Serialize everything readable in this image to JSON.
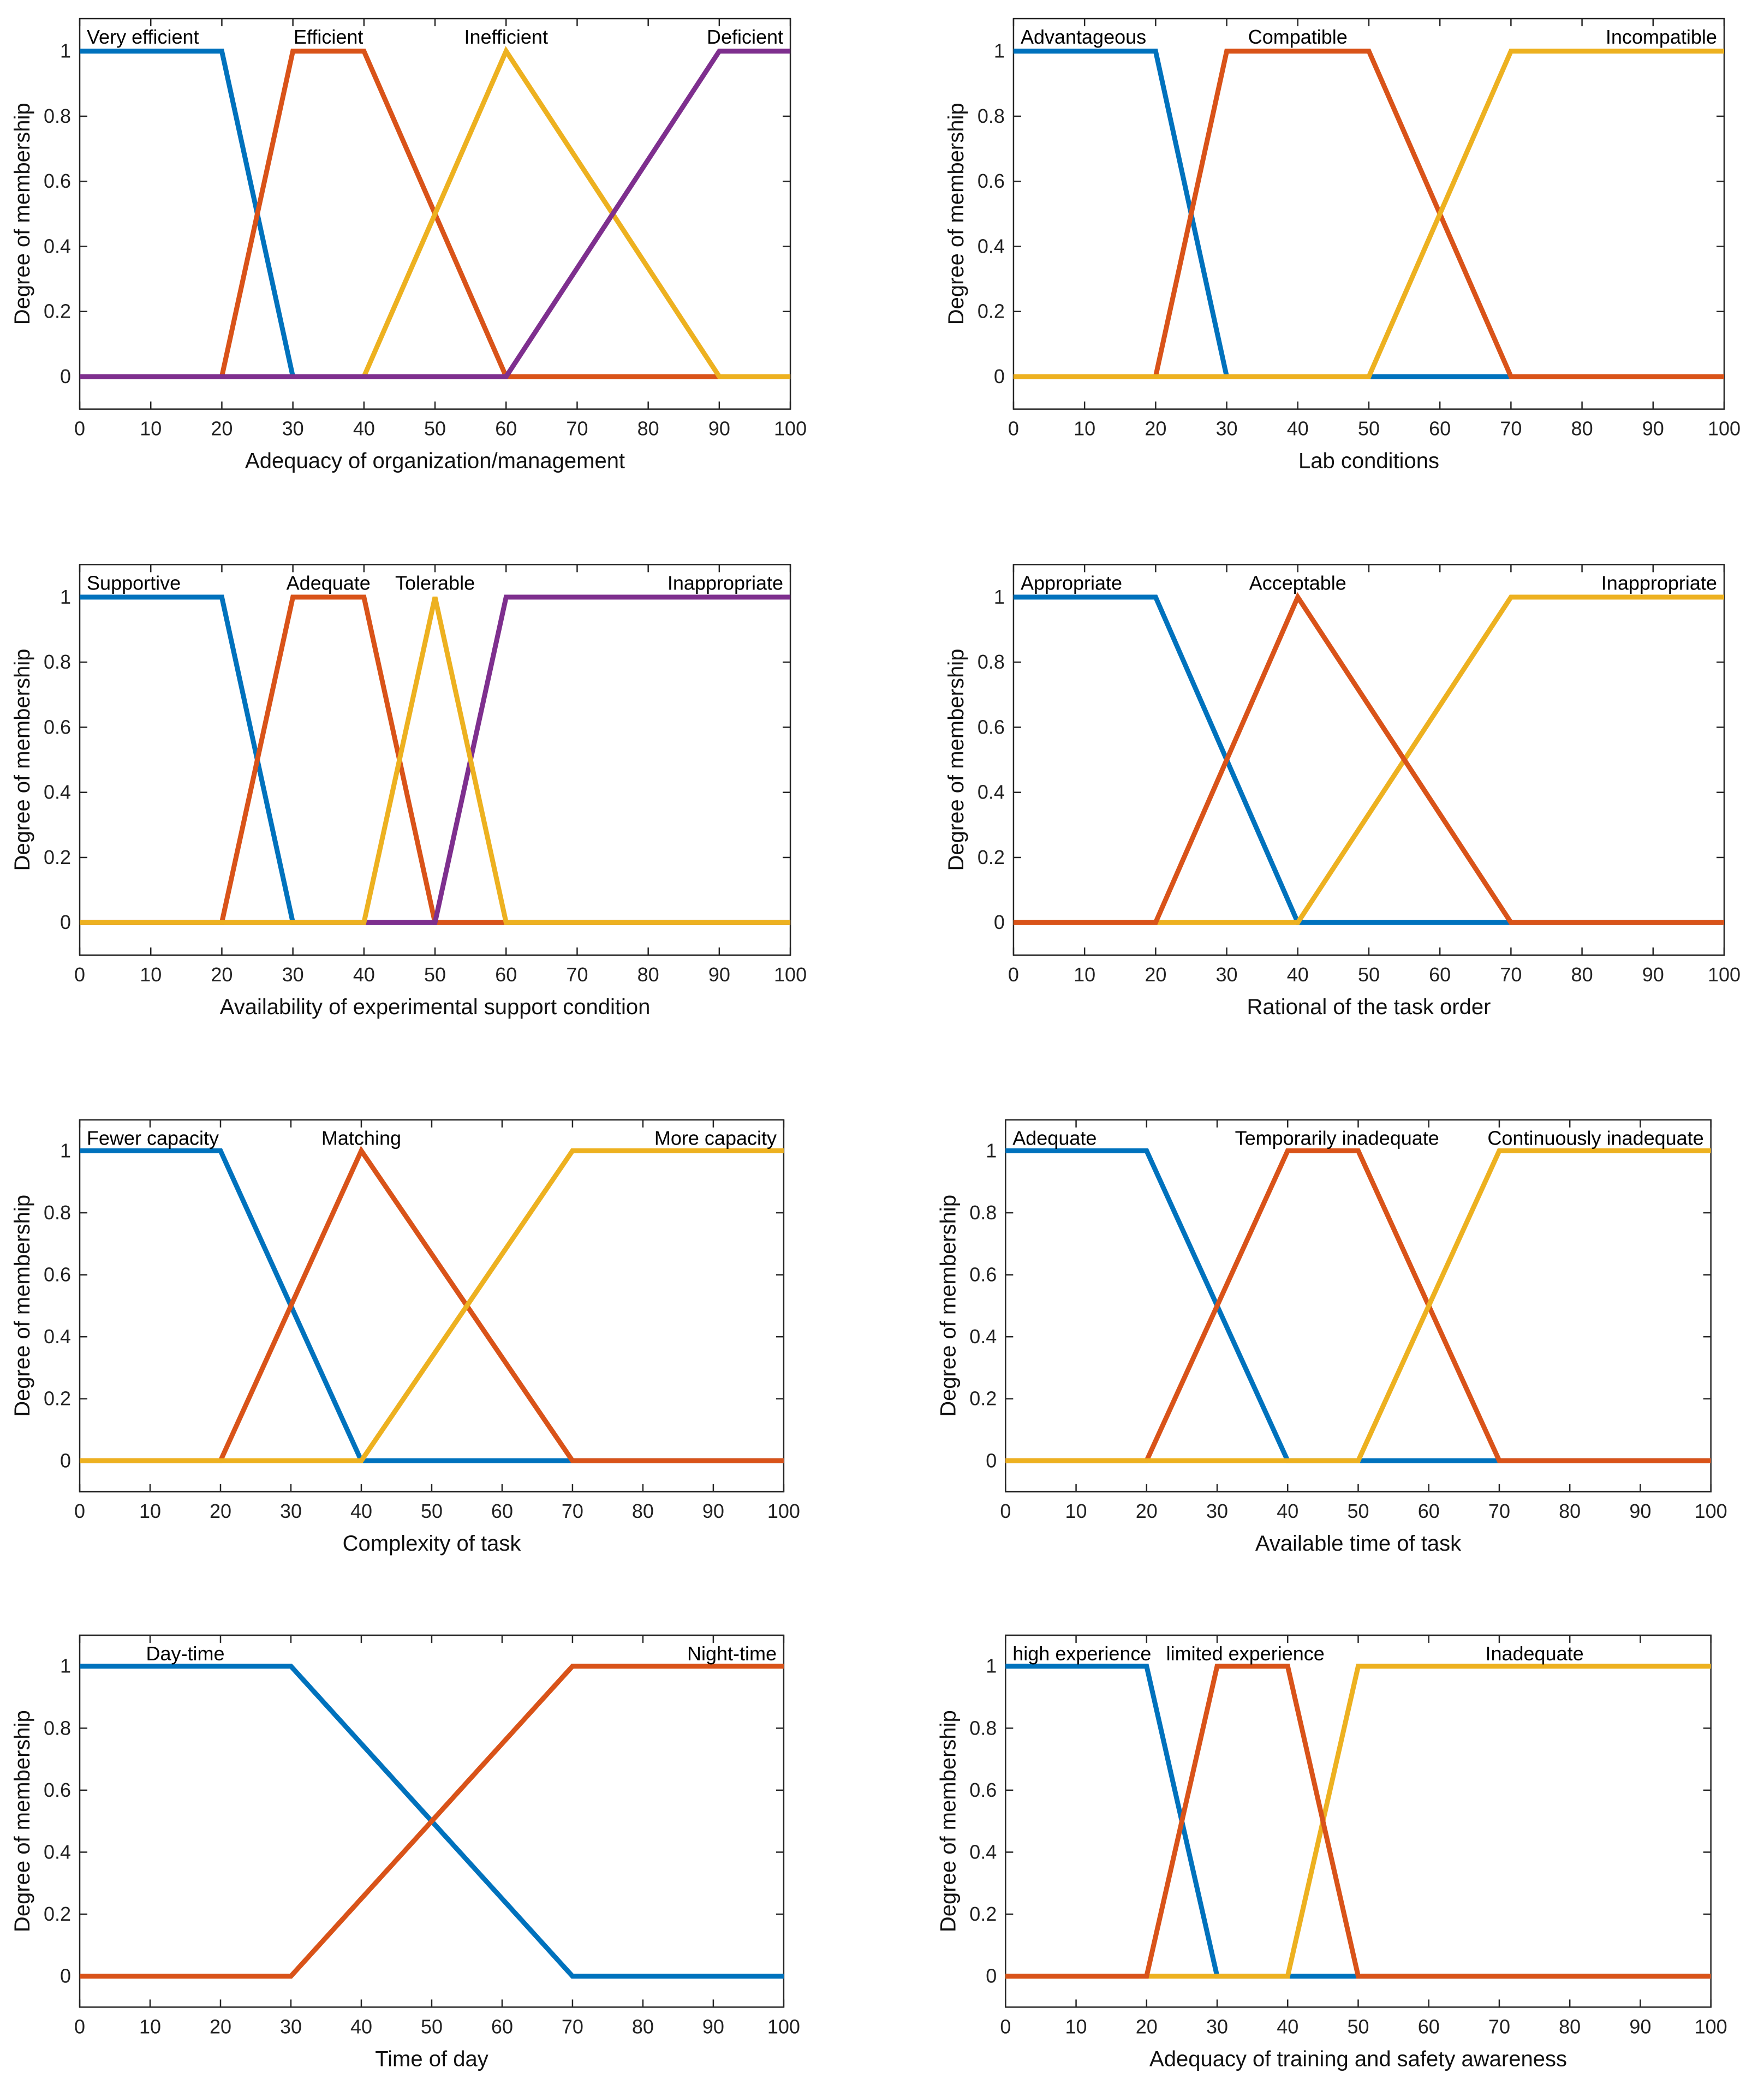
{
  "colors": {
    "blue": "#0072BD",
    "orange": "#D95319",
    "yellow": "#EDB120",
    "purple": "#7E2F8E"
  },
  "chart_data": [
    {
      "type": "line",
      "xlabel": "Adequacy of organization/management",
      "ylabel": "Degree of membership",
      "xlim": [
        0,
        100
      ],
      "ylim": [
        -0.1,
        1.1
      ],
      "xticks": [
        "0",
        "10",
        "20",
        "30",
        "40",
        "50",
        "60",
        "70",
        "80",
        "90",
        "100"
      ],
      "yticks": [
        "0",
        "0.2",
        "0.4",
        "0.6",
        "0.8",
        "1"
      ],
      "series": [
        {
          "name": "Very efficient",
          "color": "blue",
          "x": [
            0,
            20,
            30,
            100
          ],
          "y": [
            1,
            1,
            0,
            0
          ]
        },
        {
          "name": "Efficient",
          "color": "orange",
          "x": [
            0,
            20,
            30,
            40,
            60,
            100
          ],
          "y": [
            0,
            0,
            1,
            1,
            0,
            0
          ]
        },
        {
          "name": "Inefficient",
          "color": "yellow",
          "x": [
            0,
            40,
            60,
            90,
            100
          ],
          "y": [
            0,
            0,
            1,
            0,
            0
          ]
        },
        {
          "name": "Deficient",
          "color": "purple",
          "x": [
            0,
            60,
            90,
            100
          ],
          "y": [
            0,
            0,
            1,
            1
          ]
        }
      ],
      "term_labels": [
        {
          "text": "Very efficient",
          "x": 1,
          "anchor": "start"
        },
        {
          "text": "Efficient",
          "x": 35,
          "anchor": "middle"
        },
        {
          "text": "Inefficient",
          "x": 60,
          "anchor": "middle"
        },
        {
          "text": "Deficient",
          "x": 99,
          "anchor": "end"
        }
      ]
    },
    {
      "type": "line",
      "xlabel": "Lab conditions",
      "ylabel": "Degree of membership",
      "xlim": [
        0,
        100
      ],
      "ylim": [
        -0.1,
        1.1
      ],
      "xticks": [
        "0",
        "10",
        "20",
        "30",
        "40",
        "50",
        "60",
        "70",
        "80",
        "90",
        "100"
      ],
      "yticks": [
        "0",
        "0.2",
        "0.4",
        "0.6",
        "0.8",
        "1"
      ],
      "series": [
        {
          "name": "Advantageous",
          "color": "blue",
          "x": [
            0,
            20,
            30,
            100
          ],
          "y": [
            1,
            1,
            0,
            0
          ]
        },
        {
          "name": "Compatible",
          "color": "orange",
          "x": [
            0,
            20,
            30,
            50,
            70,
            100
          ],
          "y": [
            0,
            0,
            1,
            1,
            0,
            0
          ]
        },
        {
          "name": "Incompatible",
          "color": "yellow",
          "x": [
            0,
            50,
            70,
            100
          ],
          "y": [
            0,
            0,
            1,
            1
          ]
        }
      ],
      "term_labels": [
        {
          "text": "Advantageous",
          "x": 1,
          "anchor": "start"
        },
        {
          "text": "Compatible",
          "x": 40,
          "anchor": "middle"
        },
        {
          "text": "Incompatible",
          "x": 99,
          "anchor": "end"
        }
      ]
    },
    {
      "type": "line",
      "xlabel": "Availability of experimental support condition",
      "ylabel": "Degree of membership",
      "xlim": [
        0,
        100
      ],
      "ylim": [
        -0.1,
        1.1
      ],
      "xticks": [
        "0",
        "10",
        "20",
        "30",
        "40",
        "50",
        "60",
        "70",
        "80",
        "90",
        "100"
      ],
      "yticks": [
        "0",
        "0.2",
        "0.4",
        "0.6",
        "0.8",
        "1"
      ],
      "series": [
        {
          "name": "Supportive",
          "color": "blue",
          "x": [
            0,
            20,
            30,
            100
          ],
          "y": [
            1,
            1,
            0,
            0
          ]
        },
        {
          "name": "Adequate",
          "color": "orange",
          "x": [
            0,
            20,
            30,
            40,
            50,
            100
          ],
          "y": [
            0,
            0,
            1,
            1,
            0,
            0
          ]
        },
        {
          "name": "Inappropriate",
          "color": "purple",
          "x": [
            0,
            50,
            60,
            100
          ],
          "y": [
            0,
            0,
            1,
            1
          ]
        },
        {
          "name": "Tolerable",
          "color": "yellow",
          "x": [
            0,
            40,
            50,
            60,
            100
          ],
          "y": [
            0,
            0,
            1,
            0,
            0
          ]
        }
      ],
      "term_labels": [
        {
          "text": "Supportive",
          "x": 1,
          "anchor": "start"
        },
        {
          "text": "Adequate",
          "x": 35,
          "anchor": "middle"
        },
        {
          "text": "Tolerable",
          "x": 50,
          "anchor": "middle"
        },
        {
          "text": "Inappropriate",
          "x": 99,
          "anchor": "end"
        }
      ]
    },
    {
      "type": "line",
      "xlabel": "Rational of the task order",
      "ylabel": "Degree of membership",
      "xlim": [
        0,
        100
      ],
      "ylim": [
        -0.1,
        1.1
      ],
      "xticks": [
        "0",
        "10",
        "20",
        "30",
        "40",
        "50",
        "60",
        "70",
        "80",
        "90",
        "100"
      ],
      "yticks": [
        "0",
        "0.2",
        "0.4",
        "0.6",
        "0.8",
        "1"
      ],
      "series": [
        {
          "name": "Appropriate",
          "color": "blue",
          "x": [
            0,
            20,
            40,
            100
          ],
          "y": [
            1,
            1,
            0,
            0
          ]
        },
        {
          "name": "Inappropriate",
          "color": "yellow",
          "x": [
            0,
            40,
            70,
            100
          ],
          "y": [
            0,
            0,
            1,
            1
          ]
        },
        {
          "name": "Acceptable",
          "color": "orange",
          "x": [
            0,
            20,
            40,
            70,
            100
          ],
          "y": [
            0,
            0,
            1,
            0,
            0
          ]
        }
      ],
      "term_labels": [
        {
          "text": "Appropriate",
          "x": 1,
          "anchor": "start"
        },
        {
          "text": "Acceptable",
          "x": 40,
          "anchor": "middle"
        },
        {
          "text": "Inappropriate",
          "x": 99,
          "anchor": "end"
        }
      ]
    },
    {
      "type": "line",
      "xlabel": "Complexity of task",
      "ylabel": "Degree of membership",
      "xlim": [
        0,
        100
      ],
      "ylim": [
        -0.1,
        1.1
      ],
      "xticks": [
        "0",
        "10",
        "20",
        "30",
        "40",
        "50",
        "60",
        "70",
        "80",
        "90",
        "100"
      ],
      "yticks": [
        "0",
        "0.2",
        "0.4",
        "0.6",
        "0.8",
        "1"
      ],
      "series": [
        {
          "name": "Fewer capacity",
          "color": "blue",
          "x": [
            0,
            20,
            40,
            100
          ],
          "y": [
            1,
            1,
            0,
            0
          ]
        },
        {
          "name": "Matching",
          "color": "orange",
          "x": [
            0,
            20,
            40,
            70,
            100
          ],
          "y": [
            0,
            0,
            1,
            0,
            0
          ]
        },
        {
          "name": "More capacity",
          "color": "yellow",
          "x": [
            0,
            40,
            70,
            100
          ],
          "y": [
            0,
            0,
            1,
            1
          ]
        }
      ],
      "term_labels": [
        {
          "text": "Fewer capacity",
          "x": 1,
          "anchor": "start"
        },
        {
          "text": "Matching",
          "x": 40,
          "anchor": "middle"
        },
        {
          "text": "More capacity",
          "x": 99,
          "anchor": "end"
        }
      ]
    },
    {
      "type": "line",
      "xlabel": "Available time of task",
      "ylabel": "Degree of membership",
      "xlim": [
        0,
        100
      ],
      "ylim": [
        -0.1,
        1.1
      ],
      "xticks": [
        "0",
        "10",
        "20",
        "30",
        "40",
        "50",
        "60",
        "70",
        "80",
        "90",
        "100"
      ],
      "yticks": [
        "0",
        "0.2",
        "0.4",
        "0.6",
        "0.8",
        "1"
      ],
      "series": [
        {
          "name": "Adequate",
          "color": "blue",
          "x": [
            0,
            20,
            40,
            100
          ],
          "y": [
            1,
            1,
            0,
            0
          ]
        },
        {
          "name": "Temporarily inadequate",
          "color": "orange",
          "x": [
            0,
            20,
            40,
            50,
            70,
            100
          ],
          "y": [
            0,
            0,
            1,
            1,
            0,
            0
          ]
        },
        {
          "name": "Continuously inadequate",
          "color": "yellow",
          "x": [
            0,
            50,
            70,
            100
          ],
          "y": [
            0,
            0,
            1,
            1
          ]
        }
      ],
      "term_labels": [
        {
          "text": "Adequate",
          "x": 1,
          "anchor": "start"
        },
        {
          "text": "Temporarily inadequate",
          "x": 47,
          "anchor": "middle"
        },
        {
          "text": "Continuously inadequate",
          "x": 99,
          "anchor": "end"
        }
      ]
    },
    {
      "type": "line",
      "xlabel": "Time of day",
      "ylabel": "Degree of membership",
      "xlim": [
        0,
        100
      ],
      "ylim": [
        -0.1,
        1.1
      ],
      "xticks": [
        "0",
        "10",
        "20",
        "30",
        "40",
        "50",
        "60",
        "70",
        "80",
        "90",
        "100"
      ],
      "yticks": [
        "0",
        "0.2",
        "0.4",
        "0.6",
        "0.8",
        "1"
      ],
      "series": [
        {
          "name": "Day-time",
          "color": "blue",
          "x": [
            0,
            30,
            70,
            100
          ],
          "y": [
            1,
            1,
            0,
            0
          ]
        },
        {
          "name": "Night-time",
          "color": "orange",
          "x": [
            0,
            30,
            70,
            100
          ],
          "y": [
            0,
            0,
            1,
            1
          ]
        }
      ],
      "term_labels": [
        {
          "text": "Day-time",
          "x": 15,
          "anchor": "middle"
        },
        {
          "text": "Night-time",
          "x": 99,
          "anchor": "end"
        }
      ]
    },
    {
      "type": "line",
      "xlabel": "Adequacy of training and safety awareness",
      "ylabel": "Degree of membership",
      "xlim": [
        0,
        100
      ],
      "ylim": [
        -0.1,
        1.1
      ],
      "xticks": [
        "0",
        "10",
        "20",
        "30",
        "40",
        "50",
        "60",
        "70",
        "80",
        "90",
        "100"
      ],
      "yticks": [
        "0",
        "0.2",
        "0.4",
        "0.6",
        "0.8",
        "1"
      ],
      "series": [
        {
          "name": "high experience",
          "color": "blue",
          "x": [
            0,
            20,
            30,
            100
          ],
          "y": [
            1,
            1,
            0,
            0
          ]
        },
        {
          "name": "Inadequate",
          "color": "yellow",
          "x": [
            0,
            40,
            50,
            100
          ],
          "y": [
            0,
            0,
            1,
            1
          ]
        },
        {
          "name": "limited experience",
          "color": "orange",
          "x": [
            0,
            20,
            30,
            40,
            50,
            100
          ],
          "y": [
            0,
            0,
            1,
            1,
            0,
            0
          ]
        }
      ],
      "term_labels": [
        {
          "text": "high experience",
          "x": 1,
          "anchor": "start"
        },
        {
          "text": "limited experience",
          "x": 34,
          "anchor": "middle"
        },
        {
          "text": "Inadequate",
          "x": 75,
          "anchor": "middle"
        }
      ]
    }
  ]
}
